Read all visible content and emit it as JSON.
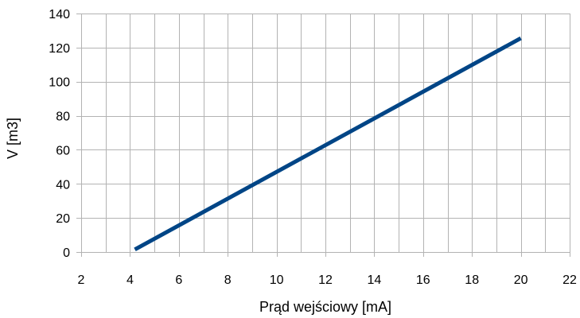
{
  "chart_data": {
    "type": "line",
    "title": "",
    "xlabel": "Prąd wejściowy [mA]",
    "ylabel": "V [m3]",
    "xlim": [
      2,
      22
    ],
    "ylim": [
      0,
      140
    ],
    "x_ticks": [
      2,
      4,
      6,
      8,
      10,
      12,
      14,
      16,
      18,
      20,
      22
    ],
    "y_ticks": [
      0,
      20,
      40,
      60,
      80,
      100,
      120,
      140
    ],
    "grid": true,
    "legend": "none",
    "series": [
      {
        "color": "#004586",
        "x": [
          4.2,
          20
        ],
        "y": [
          1.5,
          125.5
        ]
      }
    ]
  }
}
